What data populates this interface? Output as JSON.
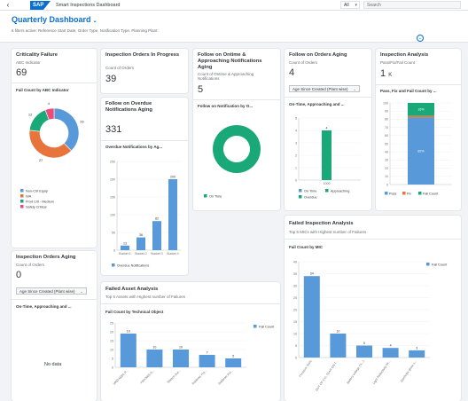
{
  "shell": {
    "back_icon": "arrow-left-icon",
    "logo": "SAP",
    "app_title": "Smart Inspections Dashboard",
    "scope": "All",
    "search_placeholder": "Search"
  },
  "header": {
    "title": "Quarterly Dashboard",
    "filters_text": "6 filters active: Reference Start Date, Order Type, Notification Type, Planning Plant"
  },
  "colors": {
    "primary": "#0a6ed1",
    "blue": "#5899da",
    "orange": "#e8743b",
    "green": "#19a979",
    "pink": "#ed4a7b",
    "axis": "#c5c8cc"
  },
  "cards": {
    "criticality": {
      "title": "Criticality Failure",
      "subtitle": "ABC Indicator",
      "kpi": "69",
      "chart_title": "Fail Count by ABC Indicator"
    },
    "orders_progress": {
      "title": "Inspection Orders In Progress",
      "subtitle": "Count of Orders",
      "kpi": "39"
    },
    "overdue": {
      "title": "Follow on Overdue Notifications Aging",
      "kpi": "331",
      "chart_title": "Overdue Notifications by Ag..."
    },
    "ontime": {
      "title": "Follow on Ontime & Approaching Notifications Aging",
      "subtitle": "Count of Ontime & Approaching Notifications",
      "kpi": "5",
      "chart_title": "Follow on Notification by O..."
    },
    "orders_aging_top": {
      "title": "Follow on Orders Aging",
      "subtitle": "Count of Orders",
      "kpi": "4",
      "select": "Age Since Created (Plant wise)",
      "chart_title": "On-Time, Approaching and ..."
    },
    "inspection_analysis": {
      "title": "Inspection Analysis",
      "subtitle": "Pass/Fix/Fail Count",
      "kpi": "1",
      "kpi_suffix": "K",
      "chart_title": "Pass, Fix and Fail Count by ..."
    },
    "orders_aging_bottom": {
      "title": "Inspection Orders Aging",
      "subtitle": "Count of Orders",
      "kpi": "0",
      "select": "Age Since Created (Plant wise)",
      "chart_title": "On-Time, Approaching and ...",
      "no_data": "No data"
    },
    "failed_asset": {
      "title": "Failed Asset Analysis",
      "subtitle": "Top 5 Assets with Highest number of Failures",
      "chart_title": "Fail Count by Technical Object"
    },
    "failed_inspection": {
      "title": "Failed Inspection Analysis",
      "subtitle": "Top 5 MICs with Highest number of Failures",
      "chart_title": "Fail Count by MIC"
    }
  },
  "chart_data": [
    {
      "type": "pie",
      "name": "Fail Count by ABC Indicator",
      "categories": [
        "Non-Crit Equip",
        "N/A",
        "Prod Crit - Medium",
        "Safety Critical"
      ],
      "values": [
        26,
        27,
        12,
        4
      ],
      "colors": [
        "#5899da",
        "#e8743b",
        "#19a979",
        "#ed4a7b"
      ]
    },
    {
      "type": "bar",
      "name": "Overdue Notifications by Ag...",
      "categories": [
        "Bucket 1",
        "Bucket 2",
        "Bucket 3",
        "Bucket 4"
      ],
      "values": [
        13,
        36,
        82,
        200
      ],
      "ylim": [
        0,
        250
      ],
      "ticks": [
        0,
        50,
        100,
        150,
        200,
        250
      ],
      "legend": [
        "Overdue Notifications"
      ]
    },
    {
      "type": "pie",
      "name": "Follow on Notification by O...",
      "categories": [
        "On Time"
      ],
      "values": [
        5
      ],
      "legend": [
        "On Time"
      ]
    },
    {
      "type": "bar",
      "name": "On-Time, Approaching and ...",
      "categories": [
        "1000"
      ],
      "series": [
        {
          "name": "On Time",
          "values": [
            0
          ]
        },
        {
          "name": "Approaching",
          "values": [
            4
          ]
        },
        {
          "name": "Overdue",
          "values": [
            0
          ]
        }
      ],
      "ylim": [
        0,
        5
      ],
      "ticks": [
        0,
        1,
        2,
        3,
        4,
        5
      ],
      "legend": [
        "On Time",
        "Approaching",
        "Overdue"
      ]
    },
    {
      "type": "bar",
      "name": "Pass, Fix and Fail Count by ...",
      "stacked": true,
      "categories": [
        ""
      ],
      "series": [
        {
          "name": "Pass",
          "values": [
            82
          ],
          "label": "82%"
        },
        {
          "name": "Fix",
          "values": [
            2
          ]
        },
        {
          "name": "Fail Count",
          "values": [
            16
          ],
          "label": "16%"
        }
      ],
      "ylim": [
        0,
        100
      ],
      "ticks": [
        0,
        10,
        20,
        30,
        40,
        50,
        60,
        70,
        80,
        90,
        100
      ],
      "legend": [
        "Pass",
        "Fix",
        "Fail Count"
      ]
    },
    {
      "type": "bar",
      "name": "Fail Count by Technical Object",
      "categories": [
        "1000-N001-P...",
        "FIM-0001-S...",
        "Watson Aut...",
        "Sublimer Pot...",
        "Sublimer Pot..."
      ],
      "values": [
        19,
        10,
        10,
        7,
        5
      ],
      "ylim": [
        0,
        25
      ],
      "ticks": [
        0,
        5,
        10,
        15,
        20,
        25
      ],
      "legend": [
        "Fail Count"
      ]
    },
    {
      "type": "bar",
      "name": "Fail Count by MIC",
      "categories": [
        "Pressure Tests",
        "OUT OF CYL TEAR ON T...",
        "Battery voltage (%...)",
        "Light Reflectivity for...",
        "Stanhope glove e..."
      ],
      "values": [
        34,
        10,
        5,
        4,
        3
      ],
      "ylim": [
        0,
        40
      ],
      "ticks": [
        0,
        5,
        10,
        15,
        20,
        25,
        30,
        35,
        40
      ],
      "legend": [
        "Fail Count"
      ]
    }
  ]
}
